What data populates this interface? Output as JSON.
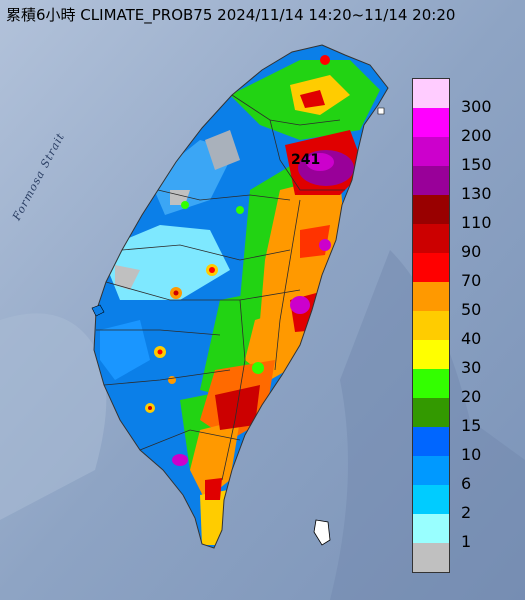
{
  "title": "累積6小時 CLIMATE_PROB75 2024/11/14 14:20~11/14 20:20",
  "strait_label": "Formosa Strait",
  "max_value_label": "241",
  "legend": {
    "unit": "",
    "items": [
      {
        "label": "300",
        "color": "#ffccff"
      },
      {
        "label": "200",
        "color": "#ff00ff"
      },
      {
        "label": "150",
        "color": "#cc00cc"
      },
      {
        "label": "130",
        "color": "#990099"
      },
      {
        "label": "110",
        "color": "#990000"
      },
      {
        "label": "90",
        "color": "#cc0000"
      },
      {
        "label": "70",
        "color": "#ff0000"
      },
      {
        "label": "50",
        "color": "#ff9900"
      },
      {
        "label": "40",
        "color": "#ffcc00"
      },
      {
        "label": "30",
        "color": "#ffff00"
      },
      {
        "label": "20",
        "color": "#33ff00"
      },
      {
        "label": "15",
        "color": "#339900"
      },
      {
        "label": "10",
        "color": "#0066ff"
      },
      {
        "label": "6",
        "color": "#0099ff"
      },
      {
        "label": "2",
        "color": "#00ccff"
      },
      {
        "label": "1",
        "color": "#99ffff"
      },
      {
        "label": "",
        "color": "#c0c0c0"
      }
    ]
  },
  "colors": {
    "sea": "#8fa3c0",
    "no_rain": "#c0c0c0"
  }
}
